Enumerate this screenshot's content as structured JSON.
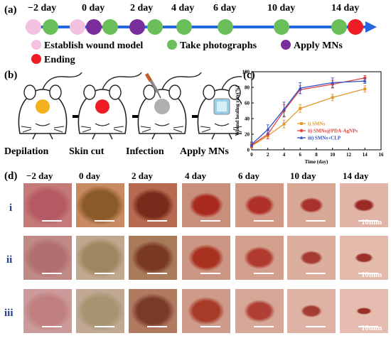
{
  "panel_labels": {
    "a": "(a)",
    "b": "(b)",
    "c": "(c)",
    "d": "(d)"
  },
  "timeline": {
    "days": [
      "−2 day",
      "0 day",
      "2 day",
      "4 day",
      "6 day",
      "10 day",
      "14 day"
    ],
    "legend": {
      "establish": "Establish wound model",
      "photographs": "Take photographs",
      "apply": "Apply MNs",
      "ending": "Ending"
    },
    "colors": {
      "pink": "#f5c1e0",
      "green": "#6abf5a",
      "purple": "#7a2d9c",
      "red": "#ee1c24",
      "arrow": "#2468e0"
    }
  },
  "steps": [
    "Depilation",
    "Skin cut",
    "Infection",
    "Apply MNs"
  ],
  "chart_data": {
    "type": "line",
    "xlabel": "Time (day)",
    "ylabel": "Wound healing rate(%)",
    "xlim": [
      0,
      16
    ],
    "ylim": [
      0,
      100
    ],
    "xticks": [
      "0",
      "2",
      "4",
      "6",
      "8",
      "10",
      "12",
      "14",
      "16"
    ],
    "yticks": [
      "0",
      "20",
      "40",
      "60",
      "80",
      "100"
    ],
    "x": [
      0,
      2,
      4,
      6,
      10,
      14
    ],
    "series": [
      {
        "name": "i) SMNs",
        "color": "#e39a2d",
        "marker": "square",
        "values": [
          5,
          18,
          33,
          53,
          67,
          78
        ],
        "errors": [
          3,
          4,
          5,
          5,
          4,
          4
        ]
      },
      {
        "name": "ii) SMNs@PDA-AgNPs",
        "color": "#e0433b",
        "marker": "circle",
        "values": [
          6,
          20,
          50,
          77,
          84,
          92
        ],
        "errors": [
          3,
          6,
          8,
          5,
          5,
          3
        ]
      },
      {
        "name": "iii) SMNs+CLP",
        "color": "#3251c8",
        "marker": "triangle",
        "values": [
          7,
          26,
          52,
          79,
          86,
          88
        ],
        "errors": [
          3,
          6,
          9,
          7,
          6,
          3
        ]
      }
    ],
    "legend_position": "bottom-right"
  },
  "photos": {
    "columns": [
      "−2 day",
      "0 day",
      "2 day",
      "4 day",
      "6 day",
      "10 day",
      "14 day"
    ],
    "rows": [
      "i",
      "ii",
      "iii"
    ],
    "scale_label": "10mm"
  }
}
